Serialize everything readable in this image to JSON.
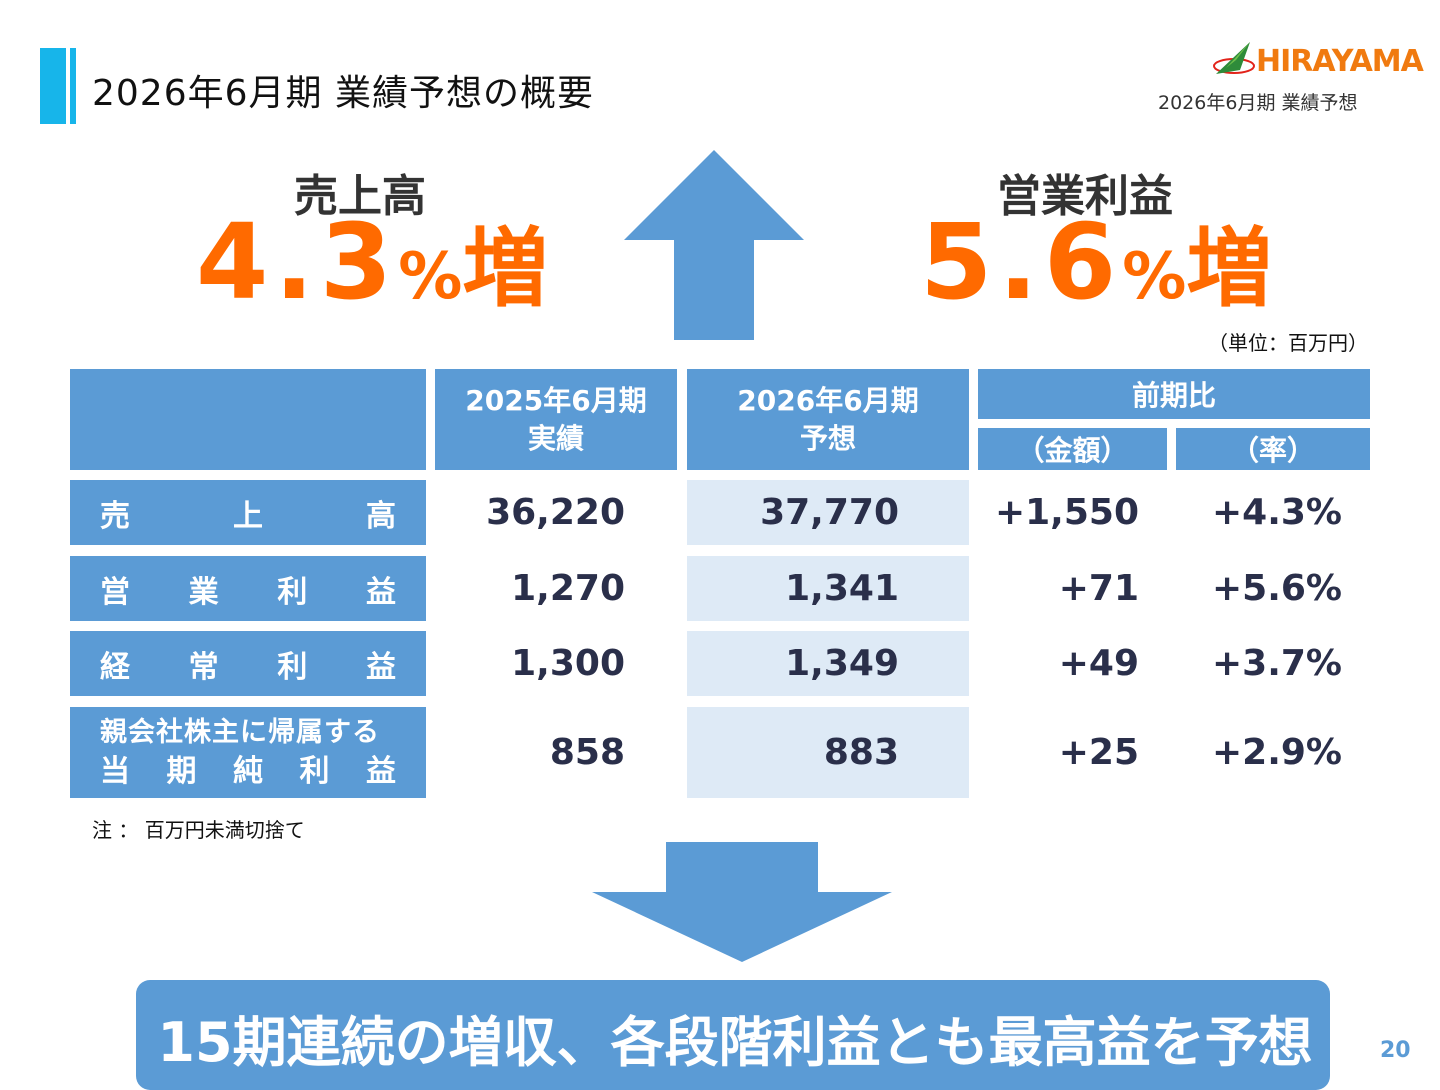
{
  "header": {
    "title": "2026年6月期 業績予想の概要",
    "logo_text": "HIRAYAMA",
    "subtitle": "2026年6月期 業績予想"
  },
  "kpis": {
    "sales": {
      "label": "売上高",
      "number": "4.3",
      "percent": "%",
      "suffix": "増"
    },
    "operating_profit": {
      "label": "営業利益",
      "number": "5.6",
      "percent": "%",
      "suffix": "増"
    }
  },
  "unit_note": "（単位：百万円）",
  "table": {
    "headers": {
      "prev_line1": "2025年6月期",
      "prev_line2": "実績",
      "fc_line1": "2026年6月期",
      "fc_line2": "予想",
      "yoy": "前期比",
      "amount": "（金額）",
      "rate": "（率）"
    },
    "rows": [
      {
        "label_chars": [
          "売",
          "上",
          "高"
        ],
        "prev": "36,220",
        "forecast": "37,770",
        "amount": "+1,550",
        "rate": "+4.3%"
      },
      {
        "label_chars": [
          "営",
          "業",
          "利",
          "益"
        ],
        "prev": "1,270",
        "forecast": "1,341",
        "amount": "+71",
        "rate": "+5.6%"
      },
      {
        "label_chars": [
          "経",
          "常",
          "利",
          "益"
        ],
        "prev": "1,300",
        "forecast": "1,349",
        "amount": "+49",
        "rate": "+3.7%"
      },
      {
        "label_line1": "親会社株主に帰属する",
        "label_chars": [
          "当",
          "期",
          "純",
          "利",
          "益"
        ],
        "prev": "858",
        "forecast": "883",
        "amount": "+25",
        "rate": "+2.9%"
      }
    ]
  },
  "note": "注 ： 百万円未満切捨て",
  "banner": "15期連続の増収、各段階利益とも最高益を予想",
  "page_number": "20",
  "colors": {
    "accent_blue": "#5b9bd5",
    "title_bar": "#17b5ea",
    "highlight_orange": "#ff6a00",
    "forecast_bg": "#deeaf6"
  },
  "icons": {
    "up_arrow": "arrow-up-icon",
    "down_arrow": "arrow-down-icon",
    "logo": "hirayama-logo-icon"
  }
}
